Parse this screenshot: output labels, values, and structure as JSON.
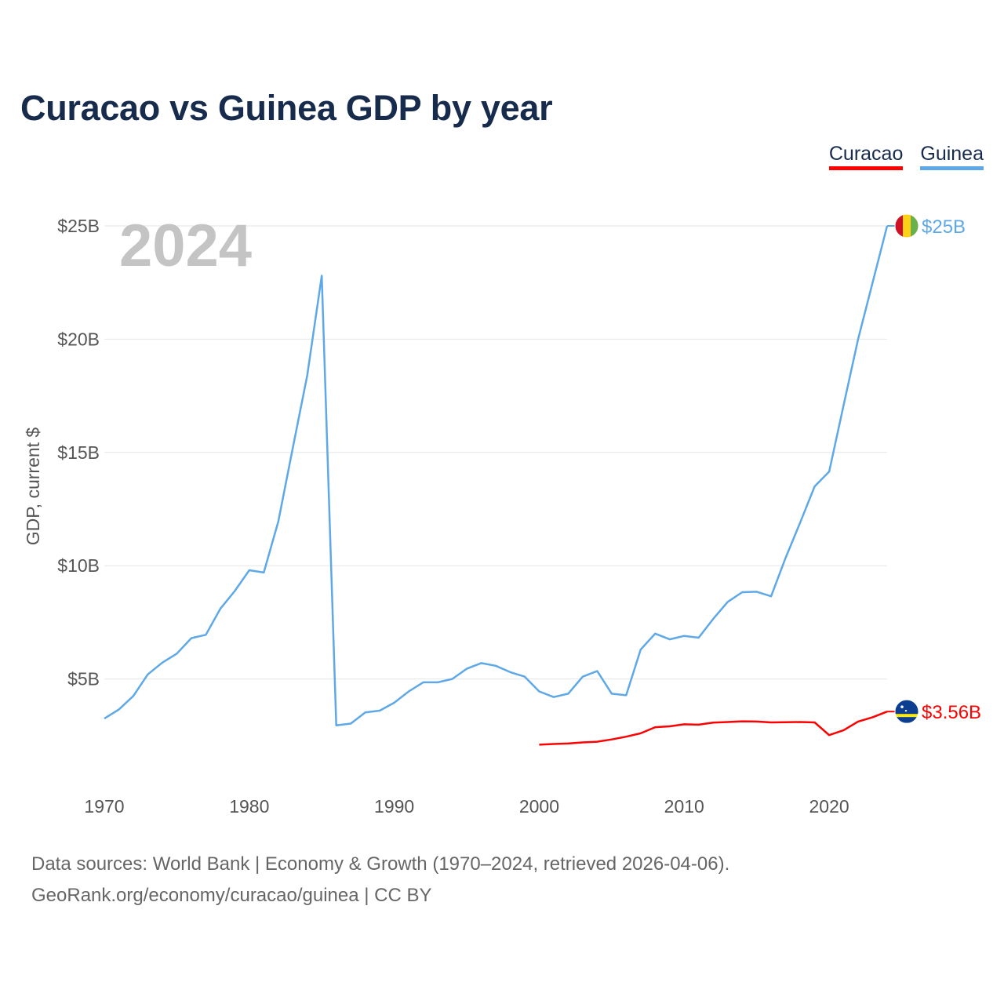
{
  "chart_data": {
    "type": "line",
    "title": "Curacao vs Guinea GDP by year",
    "xlabel": "",
    "ylabel": "GDP, current $",
    "xlim": [
      1970,
      2024
    ],
    "ylim": [
      0,
      25
    ],
    "year_watermark": "2024",
    "x_ticks": [
      {
        "value": 1970,
        "label": "1970"
      },
      {
        "value": 1980,
        "label": "1980"
      },
      {
        "value": 1990,
        "label": "1990"
      },
      {
        "value": 2000,
        "label": "2000"
      },
      {
        "value": 2010,
        "label": "2010"
      },
      {
        "value": 2020,
        "label": "2020"
      }
    ],
    "y_ticks": [
      {
        "value": 5,
        "label": "$5B"
      },
      {
        "value": 10,
        "label": "$10B"
      },
      {
        "value": 15,
        "label": "$15B"
      },
      {
        "value": 20,
        "label": "$20B"
      },
      {
        "value": 25,
        "label": "$25B"
      }
    ],
    "series": [
      {
        "name": "Curacao",
        "color": "#ff0000",
        "end_label": "$3.56B",
        "flag_icon": "curacao-flag-icon",
        "x": [
          2000,
          2001,
          2002,
          2003,
          2004,
          2005,
          2006,
          2007,
          2008,
          2009,
          2010,
          2011,
          2012,
          2013,
          2014,
          2015,
          2016,
          2017,
          2018,
          2019,
          2020,
          2021,
          2022,
          2023,
          2024
        ],
        "values": [
          2.1,
          2.13,
          2.15,
          2.2,
          2.23,
          2.33,
          2.45,
          2.6,
          2.87,
          2.91,
          3.0,
          2.98,
          3.07,
          3.1,
          3.13,
          3.12,
          3.08,
          3.09,
          3.1,
          3.08,
          2.52,
          2.74,
          3.12,
          3.31,
          3.56
        ]
      },
      {
        "name": "Guinea",
        "color": "#5fa8e8",
        "end_label": "$25B",
        "flag_icon": "guinea-flag-icon",
        "x": [
          1970,
          1971,
          1972,
          1973,
          1974,
          1975,
          1976,
          1977,
          1978,
          1979,
          1980,
          1981,
          1982,
          1983,
          1984,
          1985,
          1986,
          1987,
          1988,
          1989,
          1990,
          1991,
          1992,
          1993,
          1994,
          1995,
          1996,
          1997,
          1998,
          1999,
          2000,
          2001,
          2002,
          2003,
          2004,
          2005,
          2006,
          2007,
          2008,
          2009,
          2010,
          2011,
          2012,
          2013,
          2014,
          2015,
          2016,
          2017,
          2018,
          2019,
          2020,
          2021,
          2022,
          2023,
          2024
        ],
        "values": [
          3.25,
          3.65,
          4.25,
          5.2,
          5.72,
          6.12,
          6.8,
          6.95,
          8.1,
          8.88,
          9.8,
          9.7,
          11.95,
          15.2,
          18.4,
          22.8,
          2.95,
          3.03,
          3.52,
          3.6,
          3.95,
          4.45,
          4.85,
          4.85,
          5.0,
          5.45,
          5.7,
          5.58,
          5.3,
          5.1,
          4.45,
          4.2,
          4.35,
          5.1,
          5.35,
          4.35,
          4.28,
          6.3,
          7.0,
          6.75,
          6.9,
          6.82,
          7.65,
          8.4,
          8.83,
          8.85,
          8.65,
          10.35,
          11.9,
          13.5,
          14.15,
          17.1,
          20.0,
          22.5,
          25.0
        ]
      }
    ]
  },
  "footer": {
    "line1": "Data sources: World Bank | Economy & Growth (1970–2024, retrieved 2026-04-06).",
    "line2": "GeoRank.org/economy/curacao/guinea | CC BY"
  }
}
